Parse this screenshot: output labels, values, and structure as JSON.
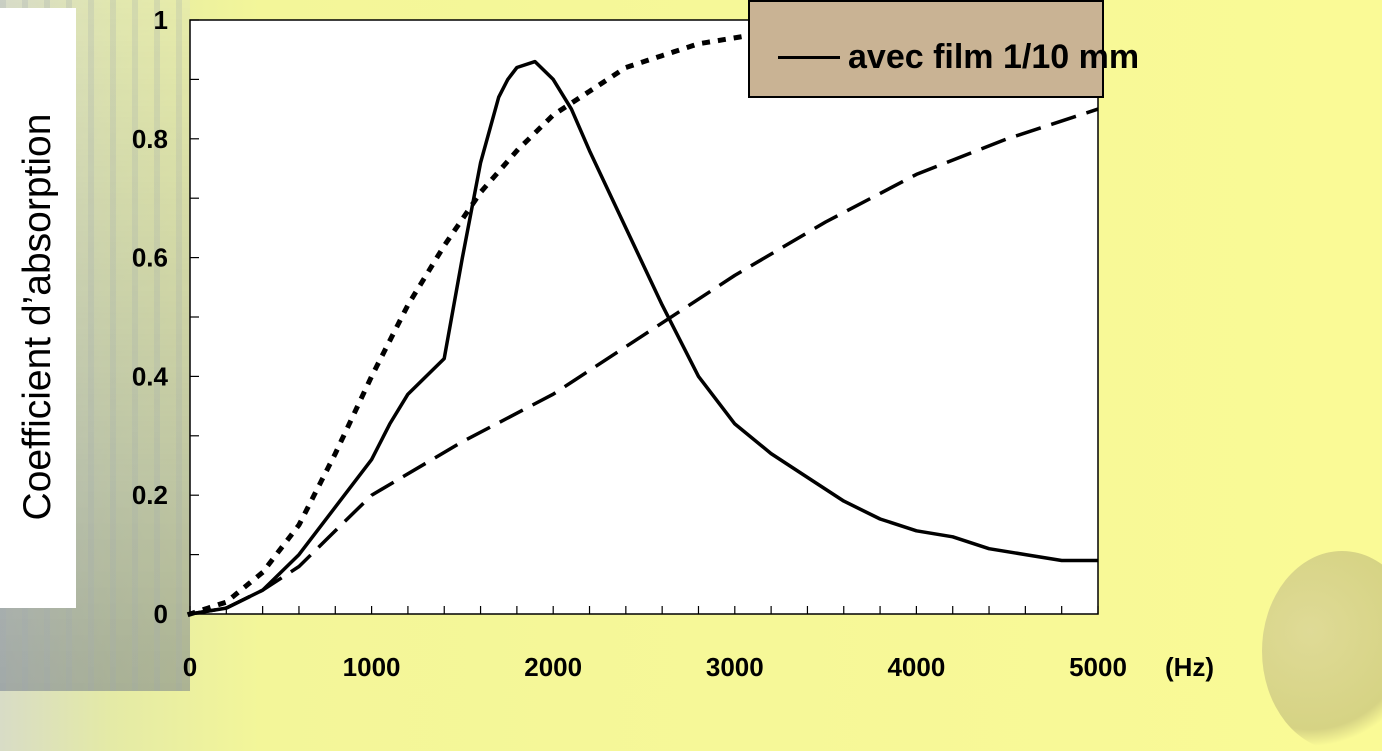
{
  "chart_data": {
    "type": "line",
    "xlabel": "(Hz)",
    "ylabel": "Coefficient d’absorption",
    "xlim": [
      0,
      5000
    ],
    "ylim": [
      0,
      1
    ],
    "x_ticks": [
      "0",
      "1000",
      "2000",
      "3000",
      "4000",
      "5000"
    ],
    "y_ticks": [
      "0",
      "0.2",
      "0.4",
      "0.6",
      "0.8",
      "1"
    ],
    "grid": false,
    "legend_placement": "top-right",
    "legend_text": "avec film 1/10 mm",
    "series": [
      {
        "name": "avec film 1/10 mm",
        "style": "solid",
        "x": [
          0,
          200,
          400,
          600,
          800,
          1000,
          1100,
          1200,
          1300,
          1400,
          1500,
          1600,
          1700,
          1750,
          1800,
          1900,
          2000,
          2100,
          2200,
          2400,
          2600,
          2800,
          3000,
          3200,
          3400,
          3600,
          3800,
          4000,
          4200,
          4400,
          4600,
          4800,
          5000
        ],
        "y": [
          0.0,
          0.01,
          0.04,
          0.1,
          0.18,
          0.26,
          0.32,
          0.37,
          0.4,
          0.43,
          0.6,
          0.76,
          0.87,
          0.9,
          0.92,
          0.93,
          0.9,
          0.85,
          0.78,
          0.65,
          0.52,
          0.4,
          0.32,
          0.27,
          0.23,
          0.19,
          0.16,
          0.14,
          0.13,
          0.11,
          0.1,
          0.09,
          0.09
        ]
      },
      {
        "style": "dotted",
        "x": [
          0,
          200,
          400,
          600,
          800,
          1000,
          1200,
          1400,
          1600,
          1800,
          2000,
          2200,
          2400,
          2600,
          2800,
          3000,
          3200
        ],
        "y": [
          0.0,
          0.02,
          0.07,
          0.15,
          0.27,
          0.4,
          0.52,
          0.62,
          0.71,
          0.78,
          0.84,
          0.88,
          0.92,
          0.94,
          0.96,
          0.97,
          0.98
        ]
      },
      {
        "style": "dashed",
        "x": [
          0,
          200,
          400,
          600,
          800,
          1000,
          1500,
          2000,
          2500,
          3000,
          3500,
          4000,
          4500,
          5000
        ],
        "y": [
          0.0,
          0.01,
          0.04,
          0.08,
          0.14,
          0.2,
          0.29,
          0.37,
          0.47,
          0.57,
          0.66,
          0.74,
          0.8,
          0.85
        ]
      }
    ]
  },
  "colors": {
    "axes": "#000000",
    "plot_background": "#ffffff",
    "legend_background": "#c9b394",
    "page_background": "#fafa96"
  }
}
